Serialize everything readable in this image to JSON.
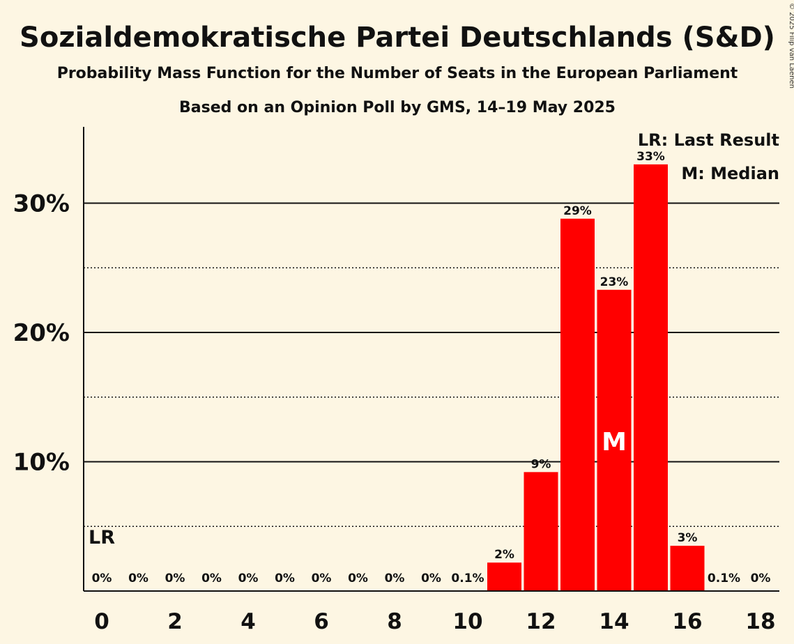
{
  "chart_data": {
    "type": "bar",
    "title": "Sozialdemokratische Partei Deutschlands (S&D)",
    "subtitle": "Probability Mass Function for the Number of Seats in the European Parliament",
    "subtitle2": "Based on an Opinion Poll by GMS, 14–19 May 2025",
    "copyright": "© 2025 Filip van Laenen",
    "legend": [
      "LR: Last Result",
      "M: Median"
    ],
    "x": [
      0,
      1,
      2,
      3,
      4,
      5,
      6,
      7,
      8,
      9,
      10,
      11,
      12,
      13,
      14,
      15,
      16,
      17,
      18
    ],
    "values": [
      0,
      0,
      0,
      0,
      0,
      0,
      0,
      0,
      0,
      0,
      0.1,
      2.2,
      9.2,
      28.8,
      23.3,
      33.0,
      3.5,
      0.1,
      0
    ],
    "data_labels": [
      "0%",
      "0%",
      "0%",
      "0%",
      "0%",
      "0%",
      "0%",
      "0%",
      "0%",
      "0%",
      "0.1%",
      "2%",
      "9%",
      "29%",
      "23%",
      "33%",
      "3%",
      "0.1%",
      "0%"
    ],
    "xticks": [
      "0",
      "2",
      "4",
      "6",
      "8",
      "10",
      "12",
      "14",
      "16",
      "18"
    ],
    "yticks": [
      "10%",
      "20%",
      "30%"
    ],
    "ylim": [
      0,
      36
    ],
    "last_result": 0,
    "last_result_label": "LR",
    "median": 14,
    "median_label": "M",
    "bar_color": "#ff0000",
    "background": "#fdf6e3"
  }
}
